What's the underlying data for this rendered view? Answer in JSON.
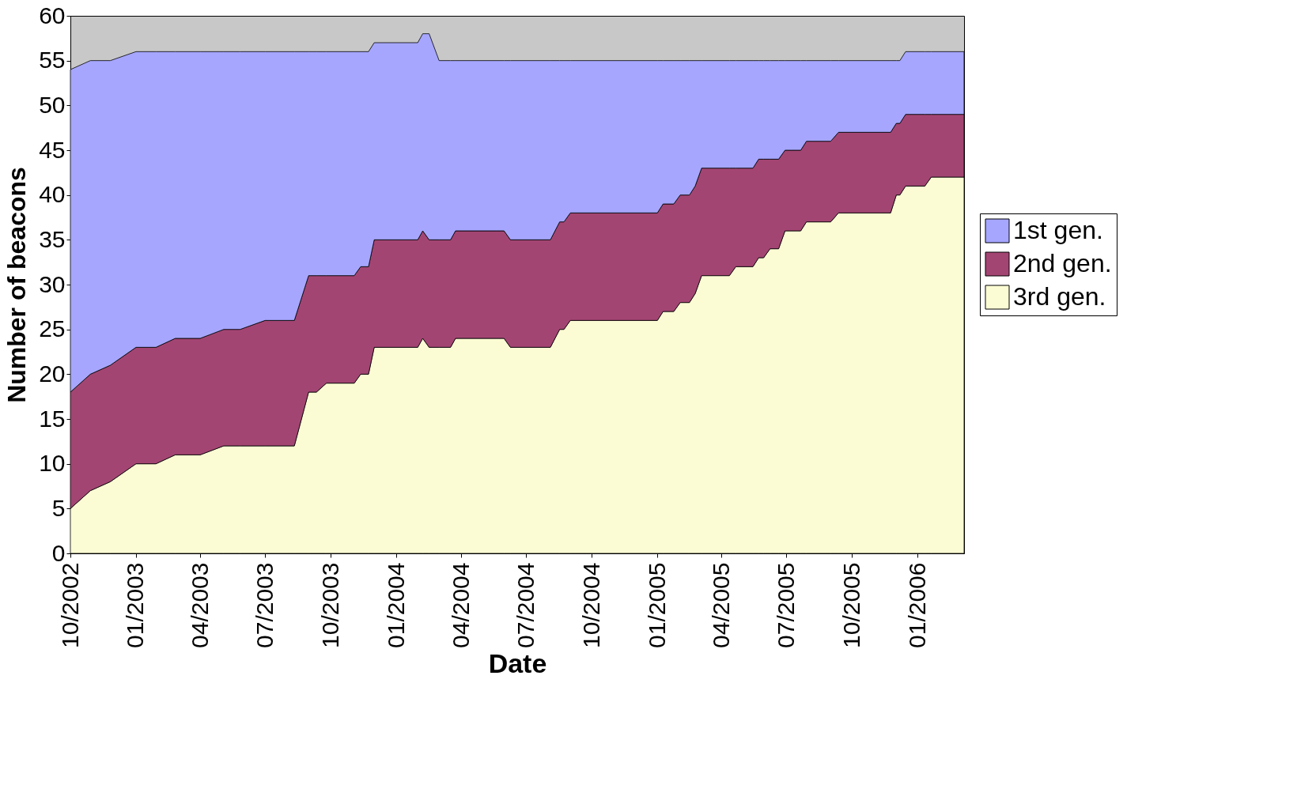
{
  "chart_data": {
    "type": "area",
    "stacked": true,
    "xlabel": "Date",
    "ylabel": "Number of beacons",
    "x": [
      "2002-10-01",
      "2002-10-29",
      "2002-11-26",
      "2003-01-01",
      "2003-01-29",
      "2003-02-25",
      "2003-04-01",
      "2003-05-04",
      "2003-05-27",
      "2003-07-01",
      "2003-08-11",
      "2003-08-31",
      "2003-09-11",
      "2003-09-25",
      "2003-11-03",
      "2003-11-12",
      "2003-11-23",
      "2003-12-01",
      "2004-01-31",
      "2004-02-07",
      "2004-02-16",
      "2004-03-01",
      "2004-03-17",
      "2004-03-24",
      "2004-05-31",
      "2004-06-09",
      "2004-08-04",
      "2004-08-17",
      "2004-08-23",
      "2004-09-01",
      "2005-01-01",
      "2005-01-09",
      "2005-01-24",
      "2005-02-02",
      "2005-02-15",
      "2005-02-23",
      "2005-03-04",
      "2005-04-12",
      "2005-04-21",
      "2005-05-15",
      "2005-05-23",
      "2005-05-30",
      "2005-06-08",
      "2005-06-20",
      "2005-06-29",
      "2005-07-21",
      "2005-07-29",
      "2005-09-01",
      "2005-09-12",
      "2005-11-24",
      "2005-12-02",
      "2005-12-07",
      "2005-12-15",
      "2006-01-11",
      "2006-01-20",
      "2006-03-07"
    ],
    "series": [
      {
        "name": "3rd gen.",
        "color": "#fcfcd4",
        "values": [
          5,
          7,
          8,
          10,
          10,
          11,
          11,
          12,
          12,
          12,
          12,
          18,
          18,
          19,
          19,
          20,
          20,
          23,
          23,
          24,
          23,
          23,
          23,
          24,
          24,
          23,
          23,
          25,
          25,
          26,
          26,
          27,
          27,
          28,
          28,
          29,
          31,
          31,
          32,
          32,
          33,
          33,
          34,
          34,
          36,
          36,
          37,
          37,
          38,
          38,
          40,
          40,
          41,
          41,
          42,
          42
        ]
      },
      {
        "name": "2nd gen.",
        "color": "#a34573",
        "values": [
          13,
          13,
          13,
          13,
          13,
          13,
          13,
          13,
          13,
          14,
          14,
          13,
          13,
          12,
          12,
          12,
          12,
          12,
          12,
          12,
          12,
          12,
          12,
          12,
          12,
          12,
          12,
          12,
          12,
          12,
          12,
          12,
          12,
          12,
          12,
          12,
          12,
          12,
          11,
          11,
          11,
          11,
          10,
          10,
          9,
          9,
          9,
          9,
          9,
          9,
          8,
          8,
          8,
          8,
          7,
          7
        ]
      },
      {
        "name": "1st gen.",
        "color": "#a6a6ff",
        "values": [
          36,
          35,
          34,
          33,
          33,
          32,
          32,
          31,
          31,
          30,
          30,
          25,
          25,
          25,
          25,
          24,
          24,
          22,
          22,
          22,
          23,
          20,
          20,
          19,
          19,
          20,
          20,
          18,
          18,
          17,
          17,
          16,
          16,
          15,
          15,
          14,
          12,
          12,
          12,
          12,
          11,
          11,
          11,
          11,
          10,
          10,
          9,
          9,
          8,
          8,
          7,
          7,
          7,
          7,
          7,
          7
        ]
      }
    ],
    "xlim": [
      "2002-10-01",
      "2006-03-07"
    ],
    "xticks": [
      {
        "value": "2002-10",
        "label": "10/2002"
      },
      {
        "value": "2003-01",
        "label": "01/2003"
      },
      {
        "value": "2003-04",
        "label": "04/2003"
      },
      {
        "value": "2003-07",
        "label": "07/2003"
      },
      {
        "value": "2003-10",
        "label": "10/2003"
      },
      {
        "value": "2004-01",
        "label": "01/2004"
      },
      {
        "value": "2004-04",
        "label": "04/2004"
      },
      {
        "value": "2004-07",
        "label": "07/2004"
      },
      {
        "value": "2004-10",
        "label": "10/2004"
      },
      {
        "value": "2005-01",
        "label": "01/2005"
      },
      {
        "value": "2005-04",
        "label": "04/2005"
      },
      {
        "value": "2005-07",
        "label": "07/2005"
      },
      {
        "value": "2005-10",
        "label": "10/2005"
      },
      {
        "value": "2006-01",
        "label": "01/2006"
      }
    ],
    "ylim": [
      0,
      60
    ],
    "yticks": [
      0,
      5,
      10,
      15,
      20,
      25,
      30,
      35,
      40,
      45,
      50,
      55,
      60
    ],
    "grid": false,
    "legend": "right"
  }
}
